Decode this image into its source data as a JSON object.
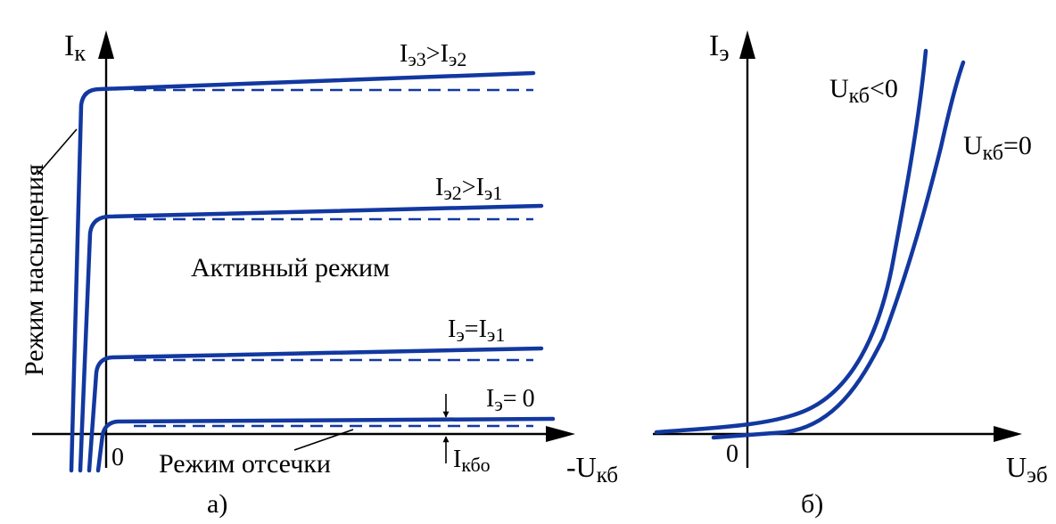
{
  "colors": {
    "curve": "#1238a0",
    "axis": "#000000"
  },
  "left_panel": {
    "caption": "а)",
    "y_axis": {
      "main": "I",
      "sub": "к"
    },
    "x_axis": {
      "main": "-U",
      "sub": "кб"
    },
    "origin": "0",
    "saturation_label": "Режим насыщения",
    "active_label": "Активный режим",
    "cutoff_label": "Режим отсечки",
    "icbo": {
      "main": "I",
      "sub": "кбо"
    },
    "curve_labels": [
      {
        "p1": "I",
        "s1": "э3",
        "op": ">",
        "p2": "I",
        "s2": "э2"
      },
      {
        "p1": "I",
        "s1": "э2",
        "op": ">",
        "p2": "I",
        "s2": "э1"
      },
      {
        "p1": "I",
        "s1": "э",
        "op": "=",
        "p2": "I",
        "s2": "э1"
      },
      {
        "p1": "I",
        "s1": "э",
        "op": "=",
        "p2": "0",
        "s2": ""
      }
    ]
  },
  "right_panel": {
    "caption": "б)",
    "y_axis": {
      "main": "I",
      "sub": "э"
    },
    "x_axis": {
      "main": "U",
      "sub": "эб"
    },
    "origin": "0",
    "curve_labels": [
      {
        "main": "U",
        "sub": "кб",
        "rest": "<0"
      },
      {
        "main": "U",
        "sub": "кб",
        "rest": "=0"
      }
    ]
  }
}
